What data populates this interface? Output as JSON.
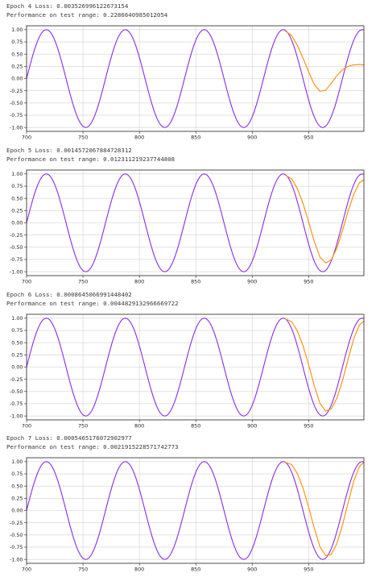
{
  "epochs": [
    {
      "loss_line": "Epoch 4 Loss: 0.003526996122673154",
      "perf_line": "Performance on test range: 0.2286640985012054"
    },
    {
      "loss_line": "Epoch 5 Loss: 0.0014572067884728312",
      "perf_line": "Performance on test range: 0.012311219237744808"
    },
    {
      "loss_line": "Epoch 6 Loss: 0.0008645066991448402",
      "perf_line": "Performance on test range: 0.0044829132966669722"
    },
    {
      "loss_line": "Epoch 7 Loss: 0.0005465176072902977",
      "perf_line": "Performance on test range: 0.0021915228571742773"
    }
  ],
  "chart_data": [
    {
      "type": "line",
      "xlim": [
        700,
        999
      ],
      "ylim": [
        -1.08,
        1.08
      ],
      "grid": true,
      "xticks": [
        700,
        750,
        800,
        850,
        900,
        950
      ],
      "yticks": [
        1.0,
        0.75,
        0.5,
        0.25,
        0.0,
        -0.25,
        -0.5,
        -0.75,
        -1.0
      ],
      "ytick_labels": [
        "1.00",
        "0.75",
        "0.50",
        "0.25",
        "0.00",
        "-0.25",
        "-0.50",
        "-0.75",
        "-1.00"
      ],
      "series": [
        {
          "color": "#8a2be2",
          "function": "y = sin(2*pi*x/70)",
          "x_range": [
            700,
            999
          ]
        },
        {
          "color": "#ff8c00",
          "x": [
            929,
            935,
            940,
            945,
            950,
            955,
            960,
            965,
            970,
            975,
            980,
            985,
            990,
            995,
            999
          ],
          "y": [
            0.98,
            0.88,
            0.68,
            0.42,
            0.14,
            -0.12,
            -0.26,
            -0.24,
            -0.1,
            0.06,
            0.18,
            0.25,
            0.28,
            0.29,
            0.28
          ]
        }
      ]
    },
    {
      "type": "line",
      "xlim": [
        700,
        999
      ],
      "ylim": [
        -1.08,
        1.08
      ],
      "grid": true,
      "xticks": [
        700,
        750,
        800,
        850,
        900,
        950
      ],
      "yticks": [
        1.0,
        0.75,
        0.5,
        0.25,
        0.0,
        -0.25,
        -0.5,
        -0.75,
        -1.0
      ],
      "ytick_labels": [
        "1.00",
        "0.75",
        "0.50",
        "0.25",
        "0.00",
        "-0.25",
        "-0.50",
        "-0.75",
        "-1.00"
      ],
      "series": [
        {
          "color": "#8a2be2",
          "function": "y = sin(2*pi*x/70)",
          "x_range": [
            700,
            999
          ]
        },
        {
          "color": "#ff8c00",
          "x": [
            929,
            935,
            940,
            945,
            950,
            955,
            960,
            965,
            970,
            975,
            980,
            985,
            990,
            995,
            999
          ],
          "y": [
            0.98,
            0.9,
            0.7,
            0.4,
            0.02,
            -0.38,
            -0.7,
            -0.82,
            -0.76,
            -0.52,
            -0.16,
            0.24,
            0.58,
            0.82,
            0.88
          ]
        }
      ]
    },
    {
      "type": "line",
      "xlim": [
        700,
        999
      ],
      "ylim": [
        -1.08,
        1.08
      ],
      "grid": true,
      "xticks": [
        700,
        750,
        800,
        850,
        900,
        950
      ],
      "yticks": [
        1.0,
        0.75,
        0.5,
        0.25,
        0.0,
        -0.25,
        -0.5,
        -0.75,
        -1.0
      ],
      "ytick_labels": [
        "1.00",
        "0.75",
        "0.50",
        "0.25",
        "0.00",
        "-0.25",
        "-0.50",
        "-0.75",
        "-1.00"
      ],
      "series": [
        {
          "color": "#8a2be2",
          "function": "y = sin(2*pi*x/70)",
          "x_range": [
            700,
            999
          ]
        },
        {
          "color": "#ff8c00",
          "x": [
            929,
            935,
            940,
            945,
            950,
            955,
            960,
            965,
            970,
            975,
            980,
            985,
            990,
            995,
            999
          ],
          "y": [
            0.99,
            0.93,
            0.74,
            0.44,
            0.05,
            -0.38,
            -0.74,
            -0.9,
            -0.86,
            -0.64,
            -0.28,
            0.16,
            0.58,
            0.86,
            0.94
          ]
        }
      ]
    },
    {
      "type": "line",
      "xlim": [
        700,
        999
      ],
      "ylim": [
        -1.08,
        1.08
      ],
      "grid": true,
      "xticks": [
        700,
        750,
        800,
        850,
        900,
        950
      ],
      "yticks": [
        1.0,
        0.75,
        0.5,
        0.25,
        0.0,
        -0.25,
        -0.5,
        -0.75,
        -1.0
      ],
      "ytick_labels": [
        "1.00",
        "0.75",
        "0.50",
        "0.25",
        "0.00",
        "-0.25",
        "-0.50",
        "-0.75",
        "-1.00"
      ],
      "series": [
        {
          "color": "#8a2be2",
          "function": "y = sin(2*pi*x/70)",
          "x_range": [
            700,
            999
          ]
        },
        {
          "color": "#ff8c00",
          "x": [
            929,
            935,
            940,
            945,
            950,
            955,
            960,
            965,
            970,
            975,
            980,
            985,
            990,
            995,
            999
          ],
          "y": [
            0.99,
            0.94,
            0.76,
            0.46,
            0.07,
            -0.36,
            -0.74,
            -0.92,
            -0.9,
            -0.68,
            -0.3,
            0.16,
            0.6,
            0.9,
            0.99
          ]
        }
      ]
    }
  ]
}
